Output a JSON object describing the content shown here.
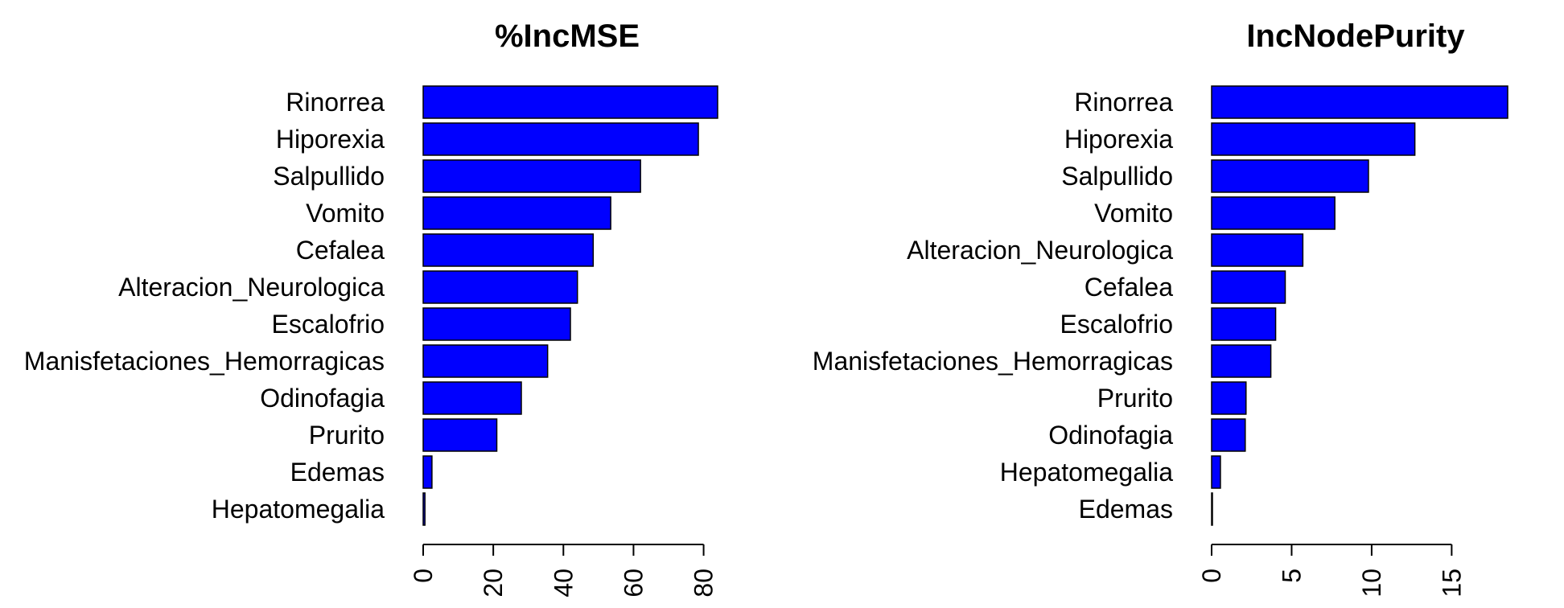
{
  "chart_data": [
    {
      "type": "bar",
      "orientation": "horizontal",
      "title": "%IncMSE",
      "xlabel": "",
      "ylabel": "",
      "categories": [
        "Rinorrea",
        "Hiporexia",
        "Salpullido",
        "Vomito",
        "Cefalea",
        "Alteracion_Neurologica",
        "Escalofrio",
        "Manisfetaciones_Hemorragicas",
        "Odinofagia",
        "Prurito",
        "Edemas",
        "Hepatomegalia"
      ],
      "values": [
        84,
        78.5,
        62,
        53.5,
        48.5,
        44,
        42,
        35.5,
        28,
        21,
        2.5,
        0.5
      ],
      "xlim": [
        0,
        84
      ],
      "ticks": [
        0,
        20,
        40,
        60,
        80
      ],
      "tick_labels": [
        "0",
        "20",
        "40",
        "60",
        "80"
      ],
      "bar_color": "#0000ff",
      "grid": false
    },
    {
      "type": "bar",
      "orientation": "horizontal",
      "title": "IncNodePurity",
      "xlabel": "",
      "ylabel": "",
      "categories": [
        "Rinorrea",
        "Hiporexia",
        "Salpullido",
        "Vomito",
        "Alteracion_Neurologica",
        "Cefalea",
        "Escalofrio",
        "Manisfetaciones_Hemorragicas",
        "Prurito",
        "Odinofagia",
        "Hepatomegalia",
        "Edemas"
      ],
      "values": [
        18.5,
        12.7,
        9.8,
        7.7,
        5.7,
        4.6,
        4.0,
        3.7,
        2.15,
        2.1,
        0.55,
        0.05
      ],
      "xlim": [
        0,
        18.5
      ],
      "ticks": [
        0,
        5,
        10,
        15
      ],
      "tick_labels": [
        "0",
        "5",
        "10",
        "15"
      ],
      "bar_color": "#0000ff",
      "grid": false
    }
  ]
}
